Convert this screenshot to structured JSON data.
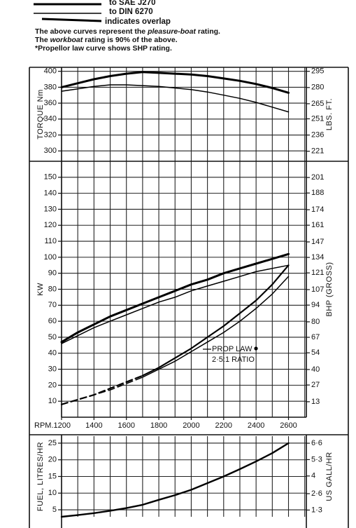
{
  "legend": [
    "to SAE J270",
    "to DIN 6270",
    "indicates overlap"
  ],
  "notes": [
    [
      "The above curves represent the ",
      "pleasure-boat",
      " rating."
    ],
    [
      "The ",
      "workboat",
      " rating is 90% of the above."
    ],
    "*Propellor law curve shows SHP rating."
  ],
  "chart_data": [
    {
      "type": "line",
      "ylabel": "TORQUE Nm",
      "y2label": "LBS. FT.",
      "x": [
        1200,
        1300,
        1400,
        1500,
        1600,
        1700,
        1800,
        1900,
        2000,
        2100,
        2200,
        2300,
        2400,
        2500,
        2600
      ],
      "xlim": [
        1200,
        2710
      ],
      "xgrid": [
        1200,
        1300,
        1400,
        1500,
        1600,
        1700,
        1800,
        1900,
        2000,
        2100,
        2200,
        2300,
        2400,
        2500,
        2600,
        2700
      ],
      "ylim": [
        287,
        405
      ],
      "yticks": [
        300,
        320,
        340,
        360,
        380,
        400
      ],
      "y2lim": [
        211.7,
        298.7
      ],
      "y2ticks": [
        221,
        236,
        251,
        265,
        280,
        295
      ],
      "grid": true,
      "series": [
        {
          "color": "#000000",
          "line_width": 3,
          "values": [
            380,
            385,
            390,
            394,
            397,
            399,
            398,
            397,
            396,
            394,
            391,
            388,
            384,
            379,
            373
          ]
        },
        {
          "color": "#000000",
          "line_width": 1.5,
          "values": [
            375,
            378,
            381,
            383,
            383,
            382,
            381,
            379,
            377,
            374,
            370,
            366,
            361,
            355,
            349
          ]
        }
      ]
    },
    {
      "type": "line",
      "ylabel": "KW",
      "y2label": "BHP (GROSS)",
      "x": [
        1200,
        1300,
        1400,
        1500,
        1600,
        1700,
        1800,
        1900,
        2000,
        2100,
        2200,
        2300,
        2400,
        2500,
        2600
      ],
      "xlim": [
        1200,
        2710
      ],
      "xticks": [
        {
          "value": 1200,
          "label": "RPM.1200"
        },
        1400,
        1600,
        1800,
        2000,
        2200,
        2400,
        2600
      ],
      "xgrid": [
        1200,
        1300,
        1400,
        1500,
        1600,
        1700,
        1800,
        1900,
        2000,
        2100,
        2200,
        2300,
        2400,
        2500,
        2600,
        2700
      ],
      "ylim": [
        0,
        160
      ],
      "yticks": [
        10,
        20,
        30,
        40,
        50,
        60,
        70,
        80,
        90,
        100,
        110,
        120,
        130,
        140,
        150
      ],
      "y2lim": [
        0,
        214.6
      ],
      "y2ticks": [
        13,
        27,
        40,
        54,
        67,
        80,
        94,
        107,
        121,
        134,
        147,
        161,
        174,
        188,
        201
      ],
      "grid": true,
      "annotations": [
        "PROP LAW",
        "2·5:1 RATIO"
      ],
      "series": [
        {
          "color": "#000000",
          "line_width": 3,
          "values": [
            47,
            53,
            58,
            63,
            67,
            71,
            75,
            79,
            83,
            86,
            90,
            93,
            96,
            99,
            102
          ]
        },
        {
          "color": "#000000",
          "line_width": 1.5,
          "values": [
            46,
            51,
            56,
            60,
            64,
            68,
            72,
            75,
            79,
            82,
            85,
            88,
            91,
            93,
            95
          ]
        },
        {
          "color": "#000000",
          "line_width": 2.2,
          "dashed_below": 1700,
          "values": [
            8,
            11,
            14,
            18,
            22,
            26,
            31,
            37,
            43,
            50,
            57,
            65,
            73,
            83,
            95
          ]
        },
        {
          "color": "#000000",
          "line_width": 1.5,
          "dashed_below": 1700,
          "values": [
            8,
            11,
            14,
            17,
            21,
            25,
            30,
            35,
            41,
            47,
            53,
            60,
            68,
            77,
            88
          ]
        }
      ]
    },
    {
      "type": "line",
      "ylabel": "FUEL, LITRES/HR",
      "y2label": "US GALL/HR",
      "x": [
        1200,
        1300,
        1400,
        1500,
        1600,
        1700,
        1800,
        1900,
        2000,
        2100,
        2200,
        2300,
        2400,
        2500,
        2600
      ],
      "xlim": [
        1200,
        2710
      ],
      "xgrid": [
        1200,
        1300,
        1400,
        1500,
        1600,
        1700,
        1800,
        1900,
        2000,
        2100,
        2200,
        2300,
        2400,
        2500,
        2600,
        2700
      ],
      "ylim": [
        2.9,
        27.1
      ],
      "yticks": [
        5,
        10,
        15,
        20,
        25
      ],
      "y2lim": [
        0.766,
        7.16
      ],
      "y2ticks": [
        {
          "value": 1.3,
          "label": "1·3"
        },
        {
          "value": 2.6,
          "label": "2·6"
        },
        4,
        {
          "value": 5.3,
          "label": "5·3"
        },
        {
          "value": 6.6,
          "label": "6·6"
        }
      ],
      "grid": true,
      "series": [
        {
          "color": "#000000",
          "line_width": 2.4,
          "values": [
            2.9,
            3.4,
            4,
            4.7,
            5.5,
            6.5,
            8,
            9.4,
            11,
            13,
            15,
            17.2,
            19.5,
            22,
            25
          ]
        }
      ]
    }
  ]
}
